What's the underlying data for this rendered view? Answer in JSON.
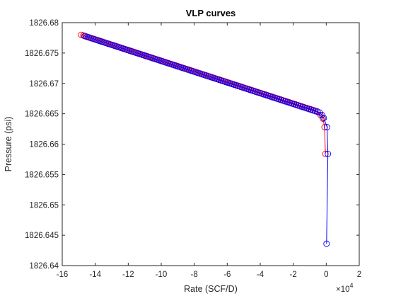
{
  "chart_data": {
    "type": "line",
    "title": "VLP curves",
    "xlabel": "Rate (SCF/D)",
    "ylabel": "Pressure (psi)",
    "x_scale_exponent_label": {
      "base": "×10",
      "exponent": "4"
    },
    "xlim": [
      -16,
      2
    ],
    "ylim": [
      1826.64,
      1826.68
    ],
    "x_ticks": [
      -16,
      -14,
      -12,
      -10,
      -8,
      -6,
      -4,
      -2,
      0,
      2
    ],
    "x_tick_labels": [
      "-16",
      "-14",
      "-12",
      "-10",
      "-8",
      "-6",
      "-4",
      "-2",
      "0",
      "2"
    ],
    "y_ticks": [
      1826.64,
      1826.645,
      1826.65,
      1826.655,
      1826.66,
      1826.665,
      1826.67,
      1826.675,
      1826.68
    ],
    "y_tick_labels": [
      "1826.64",
      "1826.645",
      "1826.65",
      "1826.655",
      "1826.66",
      "1826.665",
      "1826.67",
      "1826.675",
      "1826.68"
    ],
    "grid": false,
    "legend": "none",
    "series": [
      {
        "color": "#ff0000",
        "marker": "circle",
        "x": [
          -14.85,
          -0.55,
          -0.35,
          -0.2,
          -0.1,
          -0.05
        ],
        "y": [
          1826.678,
          1826.6654,
          1826.6648,
          1826.6642,
          1826.6628,
          1826.6584
        ]
      },
      {
        "color": "#0000ff",
        "marker": "circle",
        "x": [
          -14.65,
          -0.4,
          -0.25,
          -0.15,
          0.05,
          0.1,
          0.02
        ],
        "y": [
          1826.6778,
          1826.6652,
          1826.6648,
          1826.6643,
          1826.6628,
          1826.6584,
          1826.6436
        ]
      }
    ]
  }
}
